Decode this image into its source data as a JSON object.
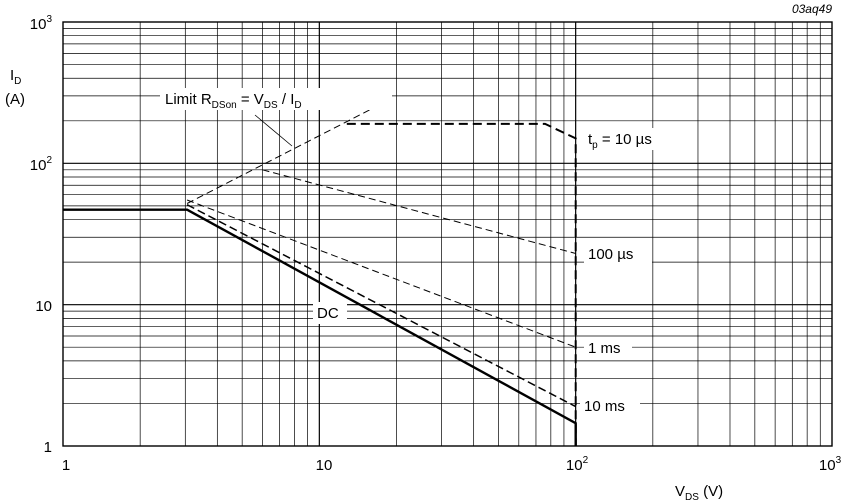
{
  "chart_data": {
    "type": "line",
    "figure_code": "03aq49",
    "x_scale": "log",
    "y_scale": "log",
    "xlim": [
      1,
      1000
    ],
    "ylim": [
      1,
      1000
    ],
    "grid": true,
    "x_tick_labels": [
      {
        "value": 1,
        "base": "1",
        "exp": ""
      },
      {
        "value": 10,
        "base": "10",
        "exp": ""
      },
      {
        "value": 100,
        "base": "10",
        "exp": "2"
      },
      {
        "value": 1000,
        "base": "10",
        "exp": "3"
      }
    ],
    "y_tick_labels": [
      {
        "value": 1,
        "base": "1",
        "exp": ""
      },
      {
        "value": 10,
        "base": "10",
        "exp": ""
      },
      {
        "value": 100,
        "base": "10",
        "exp": "2"
      },
      {
        "value": 1000,
        "base": "10",
        "exp": "3"
      }
    ],
    "xlabel": {
      "main": "V",
      "sub": "DS",
      "unit": " (V)"
    },
    "ylabel": {
      "main": "I",
      "sub": "D",
      "unit": "(A)"
    },
    "limit_label": {
      "p1": "Limit R",
      "s1": "DSon",
      "p2": " = V",
      "s2": "DS",
      "p3": " / I",
      "s3": "D"
    },
    "series": [
      {
        "name": "DC",
        "style": "solid-thick",
        "x": [
          1,
          3.05,
          100,
          100
        ],
        "y": [
          47,
          47,
          1.45,
          1
        ]
      },
      {
        "name": "10 ms",
        "style": "dashed-medium",
        "x": [
          3.05,
          100
        ],
        "y": [
          51,
          1.9
        ]
      },
      {
        "name": "1 ms",
        "style": "dashed-thin",
        "x": [
          3.05,
          100
        ],
        "y": [
          55,
          5
        ]
      },
      {
        "name": "100 µs",
        "style": "dashed-thin",
        "x": [
          6,
          100
        ],
        "y": [
          90,
          23
        ]
      },
      {
        "name": "t_p = 10 µs",
        "style": "dashed-thick",
        "x": [
          12.8,
          76,
          100,
          100
        ],
        "y": [
          190,
          190,
          150,
          1
        ]
      },
      {
        "name": "Limit R_DSon",
        "style": "dashed-thin",
        "x": [
          3.05,
          16.5
        ],
        "y": [
          52,
          250
        ]
      }
    ],
    "annotations": [
      {
        "id": "tp",
        "pre": "t",
        "sub": "p",
        "post": " = 10 µs"
      },
      {
        "id": "100us",
        "text": "100 µs"
      },
      {
        "id": "1ms",
        "text": "1 ms"
      },
      {
        "id": "10ms",
        "text": "10 ms"
      },
      {
        "id": "dc",
        "text": "DC"
      }
    ]
  }
}
